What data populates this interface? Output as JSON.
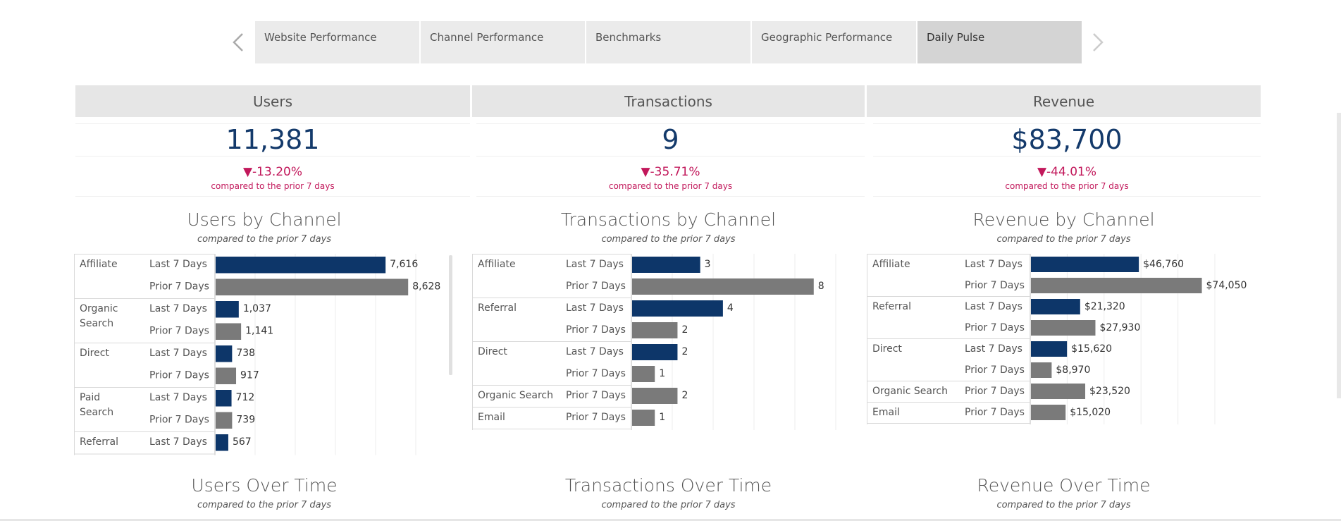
{
  "tabs": [
    {
      "label": "Website Performance",
      "active": false
    },
    {
      "label": "Channel Performance",
      "active": false
    },
    {
      "label": "Benchmarks",
      "active": false
    },
    {
      "label": "Geographic Performance",
      "active": false
    },
    {
      "label": "Daily Pulse",
      "active": true
    }
  ],
  "icons": {
    "prev": "chevron-left-icon",
    "next": "chevron-right-icon",
    "down_arrow": "▼"
  },
  "colors": {
    "current": "#0d3669",
    "prior": "#7a7a7a",
    "negative": "#c2185b",
    "kpi_value": "#143a6b"
  },
  "kpis": {
    "users": {
      "header": "Users",
      "value": "11,381",
      "change": "-13.20%",
      "compare": "compared to the prior 7 days"
    },
    "transactions": {
      "header": "Transactions",
      "value": "9",
      "change": "-35.71%",
      "compare": "compared to the prior 7 days"
    },
    "revenue": {
      "header": "Revenue",
      "value": "$83,700",
      "change": "-44.01%",
      "compare": "compared to the prior 7 days"
    }
  },
  "sections": {
    "users_by_channel": {
      "title": "Users by Channel",
      "subtitle": "compared to the prior 7 days"
    },
    "transactions_by_channel": {
      "title": "Transactions by Channel",
      "subtitle": "compared to the prior 7 days"
    },
    "revenue_by_channel": {
      "title": "Revenue by Channel",
      "subtitle": "compared to the prior 7 days"
    },
    "users_over_time": {
      "title": "Users Over Time",
      "subtitle": "compared to the prior 7 days"
    },
    "transactions_over_time": {
      "title": "Transactions Over Time",
      "subtitle": "compared to the prior 7 days"
    },
    "revenue_over_time": {
      "title": "Revenue Over Time",
      "subtitle": "compared to the prior 7 days"
    }
  },
  "chart_data": [
    {
      "type": "bar",
      "orientation": "horizontal",
      "title": "Users by Channel",
      "xlim": [
        0,
        9000
      ],
      "grid": true,
      "rows": [
        {
          "channel": "Affiliate",
          "period": "Last 7 Days",
          "value": 7616,
          "label": "7,616"
        },
        {
          "channel": "",
          "period": "Prior 7 Days",
          "value": 8628,
          "label": "8,628"
        },
        {
          "channel": "Organic Search",
          "period": "Last 7 Days",
          "value": 1037,
          "label": "1,037"
        },
        {
          "channel": "",
          "period": "Prior 7 Days",
          "value": 1141,
          "label": "1,141"
        },
        {
          "channel": "Direct",
          "period": "Last 7 Days",
          "value": 738,
          "label": "738"
        },
        {
          "channel": "",
          "period": "Prior 7 Days",
          "value": 917,
          "label": "917"
        },
        {
          "channel": "Paid Search",
          "period": "Last 7 Days",
          "value": 712,
          "label": "712"
        },
        {
          "channel": "",
          "period": "Prior 7 Days",
          "value": 739,
          "label": "739"
        },
        {
          "channel": "Referral",
          "period": "Last 7 Days",
          "value": 567,
          "label": "567"
        }
      ]
    },
    {
      "type": "bar",
      "orientation": "horizontal",
      "title": "Transactions by Channel",
      "xlim": [
        0,
        9
      ],
      "grid": true,
      "rows": [
        {
          "channel": "Affiliate",
          "period": "Last 7 Days",
          "value": 3,
          "label": "3"
        },
        {
          "channel": "",
          "period": "Prior 7 Days",
          "value": 8,
          "label": "8"
        },
        {
          "channel": "Referral",
          "period": "Last 7 Days",
          "value": 4,
          "label": "4"
        },
        {
          "channel": "",
          "period": "Prior 7 Days",
          "value": 2,
          "label": "2"
        },
        {
          "channel": "Direct",
          "period": "Last 7 Days",
          "value": 2,
          "label": "2"
        },
        {
          "channel": "",
          "period": "Prior 7 Days",
          "value": 1,
          "label": "1"
        },
        {
          "channel": "Organic Search",
          "period": "Prior 7 Days",
          "value": 2,
          "label": "2"
        },
        {
          "channel": "Email",
          "period": "Prior 7 Days",
          "value": 1,
          "label": "1"
        }
      ]
    },
    {
      "type": "bar",
      "orientation": "horizontal",
      "title": "Revenue by Channel",
      "xlim": [
        0,
        80000
      ],
      "grid": true,
      "rows": [
        {
          "channel": "Affiliate",
          "period": "Last 7 Days",
          "value": 46760,
          "label": "$46,760"
        },
        {
          "channel": "",
          "period": "Prior 7 Days",
          "value": 74050,
          "label": "$74,050"
        },
        {
          "channel": "Referral",
          "period": "Last 7 Days",
          "value": 21320,
          "label": "$21,320"
        },
        {
          "channel": "",
          "period": "Prior 7 Days",
          "value": 27930,
          "label": "$27,930"
        },
        {
          "channel": "Direct",
          "period": "Last 7 Days",
          "value": 15620,
          "label": "$15,620"
        },
        {
          "channel": "",
          "period": "Prior 7 Days",
          "value": 8970,
          "label": "$8,970"
        },
        {
          "channel": "Organic Search",
          "period": "Prior 7 Days",
          "value": 23520,
          "label": "$23,520"
        },
        {
          "channel": "Email",
          "period": "Prior 7 Days",
          "value": 15020,
          "label": "$15,020"
        }
      ]
    }
  ]
}
